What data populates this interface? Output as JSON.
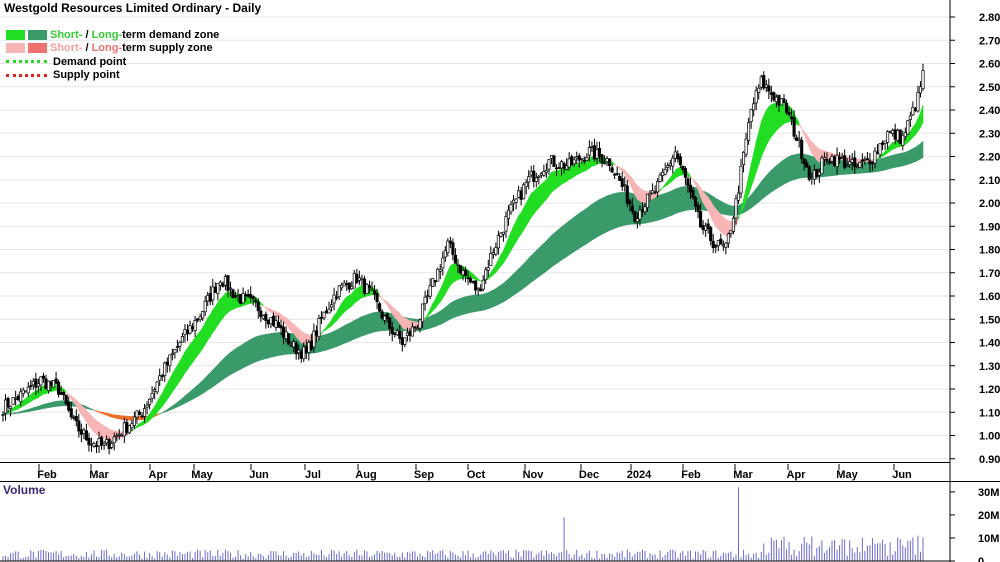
{
  "chart_data": {
    "type": "candlestick",
    "title": "Westgold Resources Limited Ordinary - Daily",
    "legend": [
      {
        "short": "Short-",
        "sep": " / ",
        "long": "Long-",
        "rest": "term demand zone",
        "short_color": "#22dd22",
        "long_color": "#3a9a6a",
        "short_text_color": "#33cc33",
        "long_text_color": "#33cc33"
      },
      {
        "short": "Short-",
        "sep": " / ",
        "long": "Long-",
        "rest": "term supply zone",
        "short_color": "#f7b5b5",
        "long_color": "#f07070",
        "short_text_color": "#f7a0a0",
        "long_text_color": "#f07070"
      },
      {
        "label": "Demand point",
        "color": "#22dd22"
      },
      {
        "label": "Supply point",
        "color": "#dd2222"
      }
    ],
    "y_axis": {
      "ticks": [
        "0.90",
        "1.00",
        "1.10",
        "1.20",
        "1.30",
        "1.40",
        "1.50",
        "1.60",
        "1.70",
        "1.80",
        "1.90",
        "2.00",
        "2.10",
        "2.20",
        "2.30",
        "2.40",
        "2.50",
        "2.60",
        "2.70",
        "2.80"
      ],
      "min": 0.85,
      "max": 2.82
    },
    "x_axis": {
      "labels": [
        "Feb",
        "Mar",
        "Apr",
        "May",
        "Jun",
        "Jul",
        "Aug",
        "Sep",
        "Oct",
        "Nov",
        "Dec",
        "2024",
        "Feb",
        "Mar",
        "Apr",
        "May",
        "Jun"
      ]
    },
    "volume": {
      "label": "Volume",
      "ticks": [
        "0",
        "10M",
        "20M",
        "30M"
      ],
      "max": 33
    }
  },
  "colors": {
    "candle": "#000000",
    "grid": "#e6e6e6",
    "volume_bar": "#6b6bcf"
  }
}
